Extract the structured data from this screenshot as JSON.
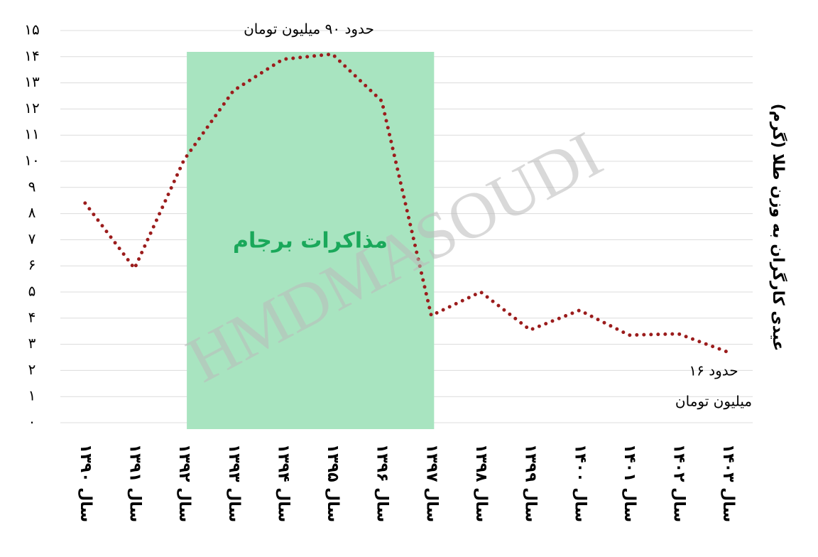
{
  "chart_data": {
    "type": "line",
    "y_axis_label": "عیدی کارگران به وزن طلا (گرم)",
    "categories": [
      "سال ۱۳۹۰",
      "سال ۱۳۹۱",
      "سال ۱۳۹۲",
      "سال ۱۳۹۳",
      "سال ۱۳۹۴",
      "سال ۱۳۹۵",
      "سال ۱۳۹۶",
      "سال ۱۳۹۷",
      "سال ۱۳۹۸",
      "سال ۱۳۹۹",
      "سال ۱۴۰۰",
      "سال ۱۴۰۱",
      "سال ۱۴۰۲",
      "سال ۱۴۰۳"
    ],
    "values": [
      8.4,
      5.9,
      10.05,
      12.7,
      13.9,
      14.1,
      12.3,
      4.1,
      5.0,
      3.55,
      4.3,
      3.35,
      3.4,
      2.7
    ],
    "color": "#9b1c1c",
    "ylim": [
      0,
      15
    ],
    "yticks": [
      {
        "value": 0,
        "label": "۰"
      },
      {
        "value": 1,
        "label": "۱"
      },
      {
        "value": 2,
        "label": "۲"
      },
      {
        "value": 3,
        "label": "۳"
      },
      {
        "value": 4,
        "label": "۴"
      },
      {
        "value": 5,
        "label": "۵"
      },
      {
        "value": 6,
        "label": "۶"
      },
      {
        "value": 7,
        "label": "۷"
      },
      {
        "value": 8,
        "label": "۸"
      },
      {
        "value": 9,
        "label": "۹"
      },
      {
        "value": 10,
        "label": "۱۰"
      },
      {
        "value": 11,
        "label": "۱۱"
      },
      {
        "value": 12,
        "label": "۱۲"
      },
      {
        "value": 13,
        "label": "۱۳"
      },
      {
        "value": 14,
        "label": "۱۴"
      },
      {
        "value": 15,
        "label": "۱۵"
      }
    ],
    "grid": true,
    "shade": {
      "label": "مذاکرات برجام",
      "from": "سال ۱۳۹۲",
      "to": "سال ۱۳۹۷",
      "color": "#a8e4c0",
      "label_color": "#1aa85a"
    },
    "annotations": [
      "حدود ۹۰ میلیون تومان",
      "حدود ۱۶",
      "میلیون تومان"
    ],
    "watermark": "HMDMASOUDI"
  }
}
